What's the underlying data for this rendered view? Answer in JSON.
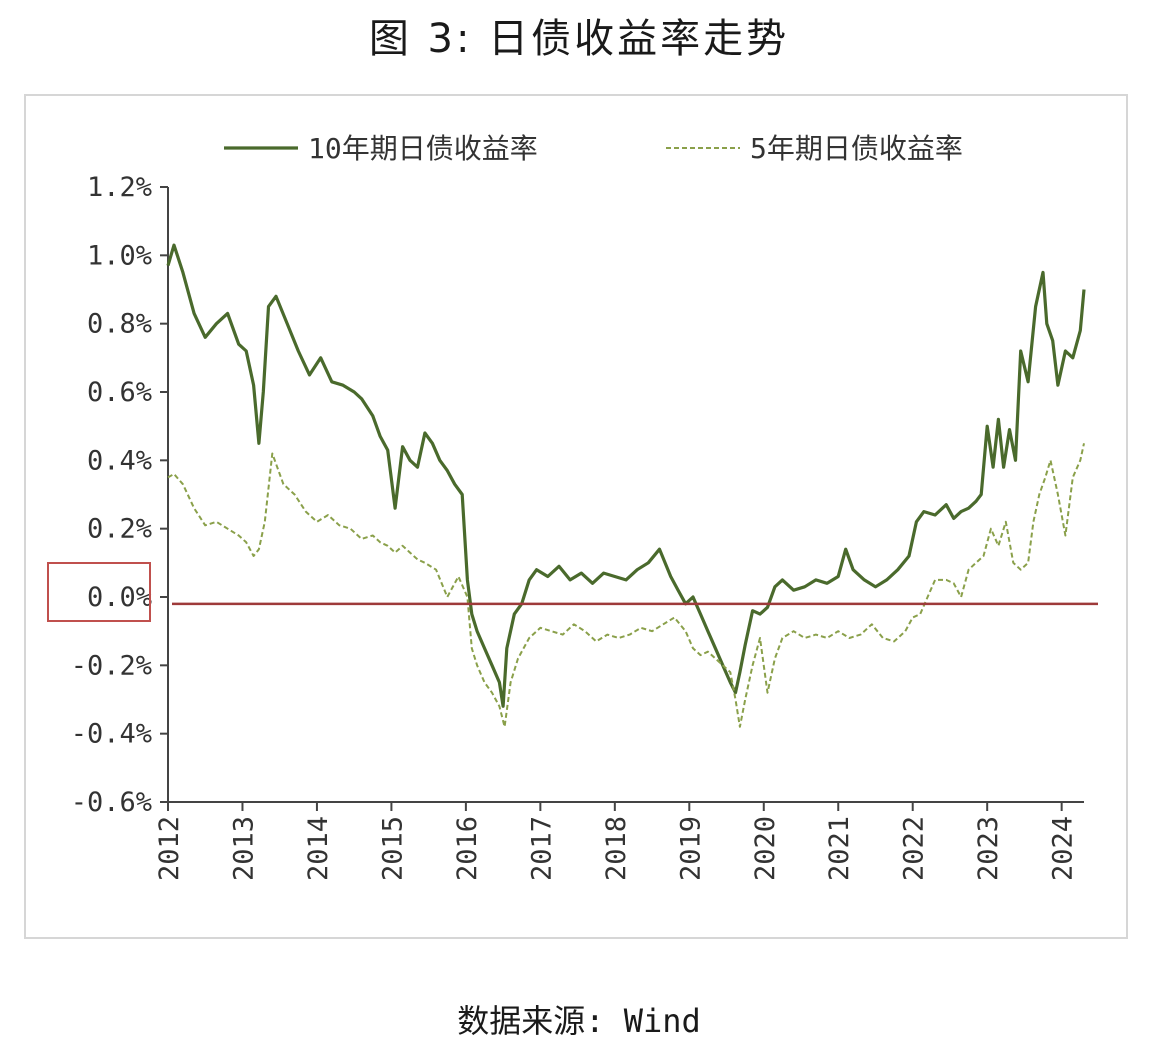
{
  "title": "图 3: 日债收益率走势",
  "source": "数据来源: Wind",
  "chart_data": {
    "type": "line",
    "title": "图 3: 日债收益率走势",
    "xlabel": "",
    "ylabel": "",
    "xlim": [
      2012.0,
      2024.3
    ],
    "ylim": [
      -0.6,
      1.2
    ],
    "x_ticks": [
      "2012",
      "2013",
      "2014",
      "2015",
      "2016",
      "2017",
      "2018",
      "2019",
      "2020",
      "2021",
      "2022",
      "2023",
      "2024"
    ],
    "y_ticks": [
      "1.2%",
      "1.0%",
      "0.8%",
      "0.6%",
      "0.4%",
      "0.2%",
      "0.0%",
      "-0.2%",
      "-0.4%",
      "-0.6%"
    ],
    "y_tick_values": [
      1.2,
      1.0,
      0.8,
      0.6,
      0.4,
      0.2,
      0.0,
      -0.2,
      -0.4,
      -0.6
    ],
    "legend_position": "top",
    "grid": false,
    "reference_line": {
      "y": -0.02,
      "color": "#9e3a3a"
    },
    "highlight_box_label": "0.0%",
    "highlight_color": "#c0504d",
    "series": [
      {
        "name": "10年期日债收益率",
        "style": "solid",
        "color": "#4a6a2c",
        "x": [
          2012.0,
          2012.08,
          2012.2,
          2012.35,
          2012.5,
          2012.65,
          2012.8,
          2012.95,
          2013.05,
          2013.15,
          2013.22,
          2013.28,
          2013.35,
          2013.45,
          2013.6,
          2013.75,
          2013.9,
          2014.05,
          2014.2,
          2014.35,
          2014.5,
          2014.6,
          2014.75,
          2014.85,
          2014.95,
          2015.05,
          2015.15,
          2015.25,
          2015.35,
          2015.45,
          2015.55,
          2015.65,
          2015.75,
          2015.85,
          2015.95,
          2016.02,
          2016.08,
          2016.15,
          2016.25,
          2016.35,
          2016.45,
          2016.5,
          2016.55,
          2016.65,
          2016.75,
          2016.85,
          2016.95,
          2017.1,
          2017.25,
          2017.4,
          2017.55,
          2017.7,
          2017.85,
          2018.0,
          2018.15,
          2018.3,
          2018.45,
          2018.6,
          2018.75,
          2018.85,
          2018.95,
          2019.05,
          2019.15,
          2019.25,
          2019.35,
          2019.45,
          2019.55,
          2019.62,
          2019.68,
          2019.75,
          2019.85,
          2019.95,
          2020.05,
          2020.15,
          2020.25,
          2020.4,
          2020.55,
          2020.7,
          2020.85,
          2021.0,
          2021.1,
          2021.2,
          2021.35,
          2021.5,
          2021.65,
          2021.8,
          2021.95,
          2022.05,
          2022.15,
          2022.3,
          2022.45,
          2022.55,
          2022.65,
          2022.75,
          2022.85,
          2022.92,
          2023.0,
          2023.08,
          2023.15,
          2023.22,
          2023.3,
          2023.38,
          2023.45,
          2023.55,
          2023.65,
          2023.75,
          2023.8,
          2023.88,
          2023.95,
          2024.05,
          2024.15,
          2024.25,
          2024.3
        ],
        "y": [
          0.97,
          1.03,
          0.95,
          0.83,
          0.76,
          0.8,
          0.83,
          0.74,
          0.72,
          0.62,
          0.45,
          0.6,
          0.85,
          0.88,
          0.8,
          0.72,
          0.65,
          0.7,
          0.63,
          0.62,
          0.6,
          0.58,
          0.53,
          0.47,
          0.43,
          0.26,
          0.44,
          0.4,
          0.38,
          0.48,
          0.45,
          0.4,
          0.37,
          0.33,
          0.3,
          0.05,
          -0.05,
          -0.1,
          -0.15,
          -0.2,
          -0.25,
          -0.32,
          -0.15,
          -0.05,
          -0.02,
          0.05,
          0.08,
          0.06,
          0.09,
          0.05,
          0.07,
          0.04,
          0.07,
          0.06,
          0.05,
          0.08,
          0.1,
          0.14,
          0.06,
          0.02,
          -0.02,
          0.0,
          -0.05,
          -0.1,
          -0.15,
          -0.2,
          -0.25,
          -0.28,
          -0.22,
          -0.14,
          -0.04,
          -0.05,
          -0.03,
          0.03,
          0.05,
          0.02,
          0.03,
          0.05,
          0.04,
          0.06,
          0.14,
          0.08,
          0.05,
          0.03,
          0.05,
          0.08,
          0.12,
          0.22,
          0.25,
          0.24,
          0.27,
          0.23,
          0.25,
          0.26,
          0.28,
          0.3,
          0.5,
          0.38,
          0.52,
          0.38,
          0.49,
          0.4,
          0.72,
          0.63,
          0.85,
          0.95,
          0.8,
          0.75,
          0.62,
          0.72,
          0.7,
          0.78,
          0.9
        ]
      },
      {
        "name": "5年期日债收益率",
        "style": "dashed",
        "color": "#8aa04a",
        "x": [
          2012.0,
          2012.08,
          2012.2,
          2012.35,
          2012.5,
          2012.65,
          2012.8,
          2012.95,
          2013.05,
          2013.15,
          2013.22,
          2013.3,
          2013.4,
          2013.55,
          2013.7,
          2013.85,
          2014.0,
          2014.15,
          2014.3,
          2014.45,
          2014.6,
          2014.75,
          2014.85,
          2014.95,
          2015.05,
          2015.15,
          2015.25,
          2015.35,
          2015.45,
          2015.6,
          2015.75,
          2015.9,
          2016.02,
          2016.08,
          2016.15,
          2016.25,
          2016.35,
          2016.45,
          2016.52,
          2016.6,
          2016.7,
          2016.85,
          2017.0,
          2017.15,
          2017.3,
          2017.45,
          2017.6,
          2017.75,
          2017.9,
          2018.05,
          2018.2,
          2018.35,
          2018.5,
          2018.65,
          2018.8,
          2018.95,
          2019.05,
          2019.15,
          2019.25,
          2019.35,
          2019.45,
          2019.55,
          2019.62,
          2019.68,
          2019.75,
          2019.85,
          2019.95,
          2020.05,
          2020.15,
          2020.25,
          2020.4,
          2020.55,
          2020.7,
          2020.85,
          2021.0,
          2021.15,
          2021.3,
          2021.45,
          2021.6,
          2021.75,
          2021.9,
          2022.0,
          2022.1,
          2022.2,
          2022.3,
          2022.45,
          2022.55,
          2022.65,
          2022.75,
          2022.85,
          2022.95,
          2023.05,
          2023.15,
          2023.25,
          2023.35,
          2023.45,
          2023.55,
          2023.62,
          2023.7,
          2023.78,
          2023.85,
          2023.95,
          2024.05,
          2024.15,
          2024.25,
          2024.3
        ],
        "y": [
          0.35,
          0.36,
          0.33,
          0.26,
          0.21,
          0.22,
          0.2,
          0.18,
          0.16,
          0.12,
          0.14,
          0.22,
          0.42,
          0.33,
          0.3,
          0.25,
          0.22,
          0.24,
          0.21,
          0.2,
          0.17,
          0.18,
          0.16,
          0.15,
          0.13,
          0.15,
          0.13,
          0.11,
          0.1,
          0.08,
          0.0,
          0.06,
          0.0,
          -0.15,
          -0.2,
          -0.25,
          -0.28,
          -0.32,
          -0.38,
          -0.25,
          -0.18,
          -0.12,
          -0.09,
          -0.1,
          -0.11,
          -0.08,
          -0.1,
          -0.13,
          -0.11,
          -0.12,
          -0.11,
          -0.09,
          -0.1,
          -0.08,
          -0.06,
          -0.1,
          -0.15,
          -0.17,
          -0.16,
          -0.18,
          -0.2,
          -0.22,
          -0.3,
          -0.38,
          -0.3,
          -0.2,
          -0.12,
          -0.28,
          -0.18,
          -0.12,
          -0.1,
          -0.12,
          -0.11,
          -0.12,
          -0.1,
          -0.12,
          -0.11,
          -0.08,
          -0.12,
          -0.13,
          -0.1,
          -0.06,
          -0.05,
          0.0,
          0.05,
          0.05,
          0.04,
          0.0,
          0.08,
          0.1,
          0.12,
          0.2,
          0.15,
          0.22,
          0.1,
          0.08,
          0.1,
          0.22,
          0.3,
          0.35,
          0.4,
          0.3,
          0.18,
          0.35,
          0.4,
          0.45
        ]
      }
    ]
  }
}
